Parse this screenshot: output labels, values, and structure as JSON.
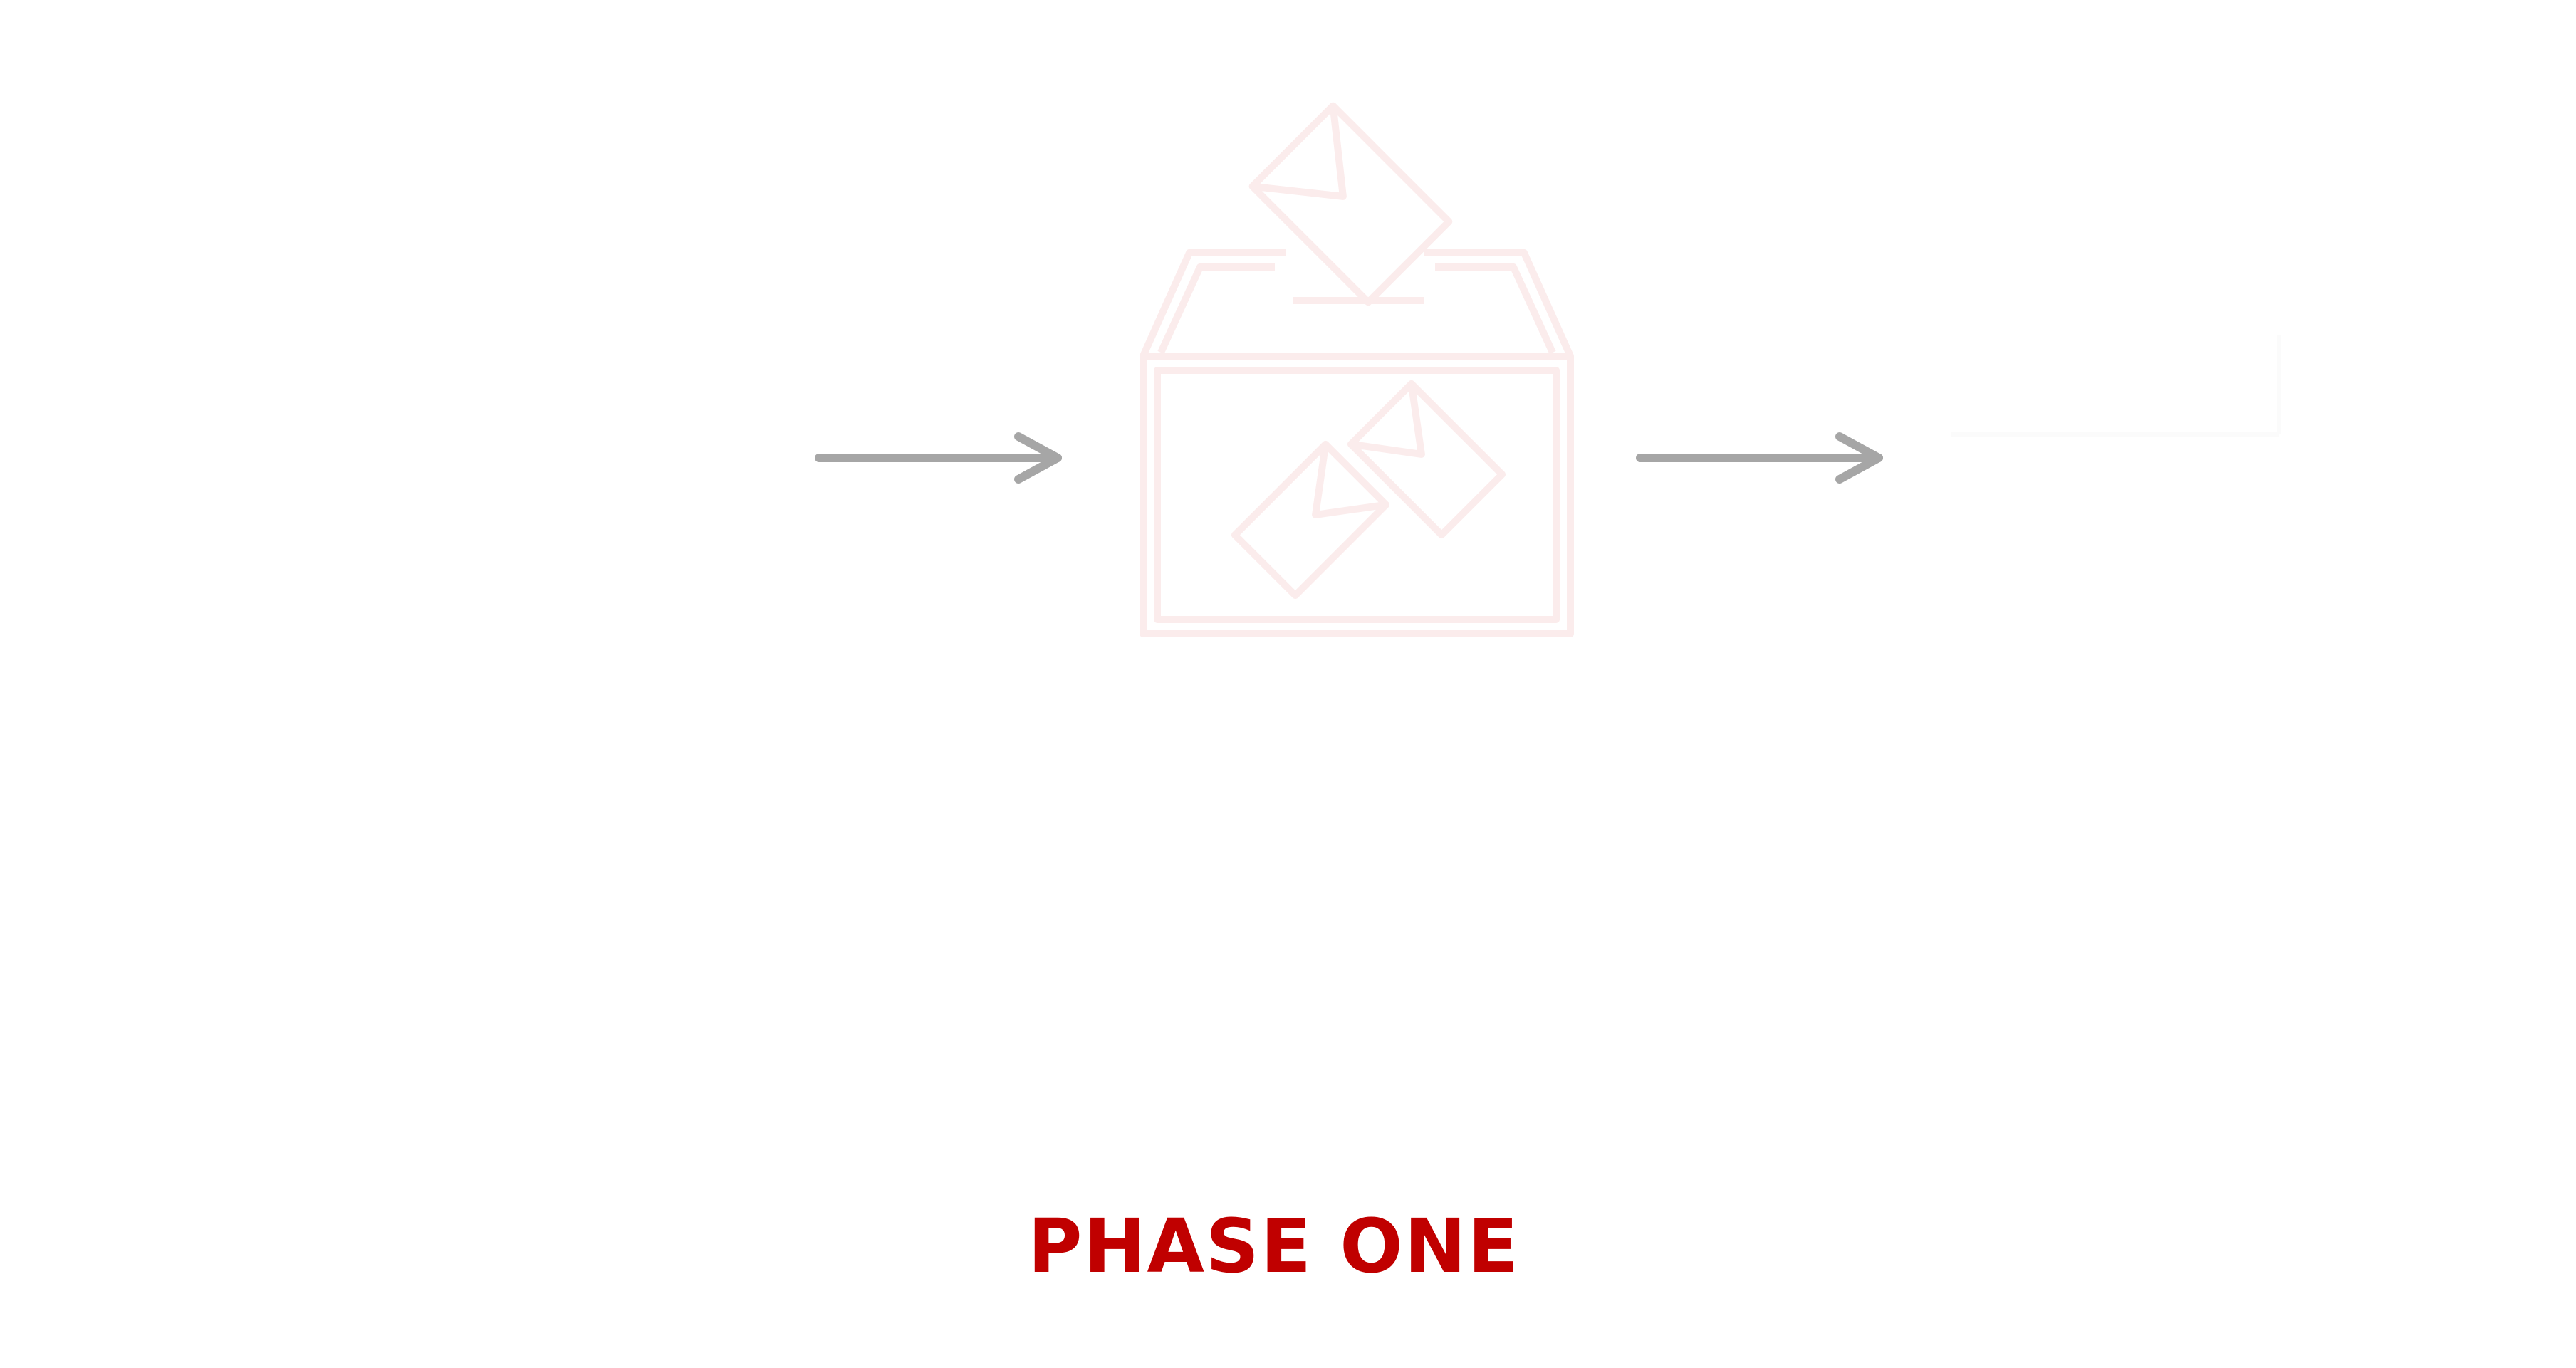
{
  "diagram": {
    "phase_label": "PHASE ONE",
    "icons": {
      "center": "ballot-box-icon",
      "envelope": "envelope-icon",
      "arrow": "arrow-right-icon"
    },
    "colors": {
      "label": "#c00000",
      "arrow": "#a6a6a6",
      "icon_outline": "#fbecec",
      "background": "#ffffff"
    }
  }
}
